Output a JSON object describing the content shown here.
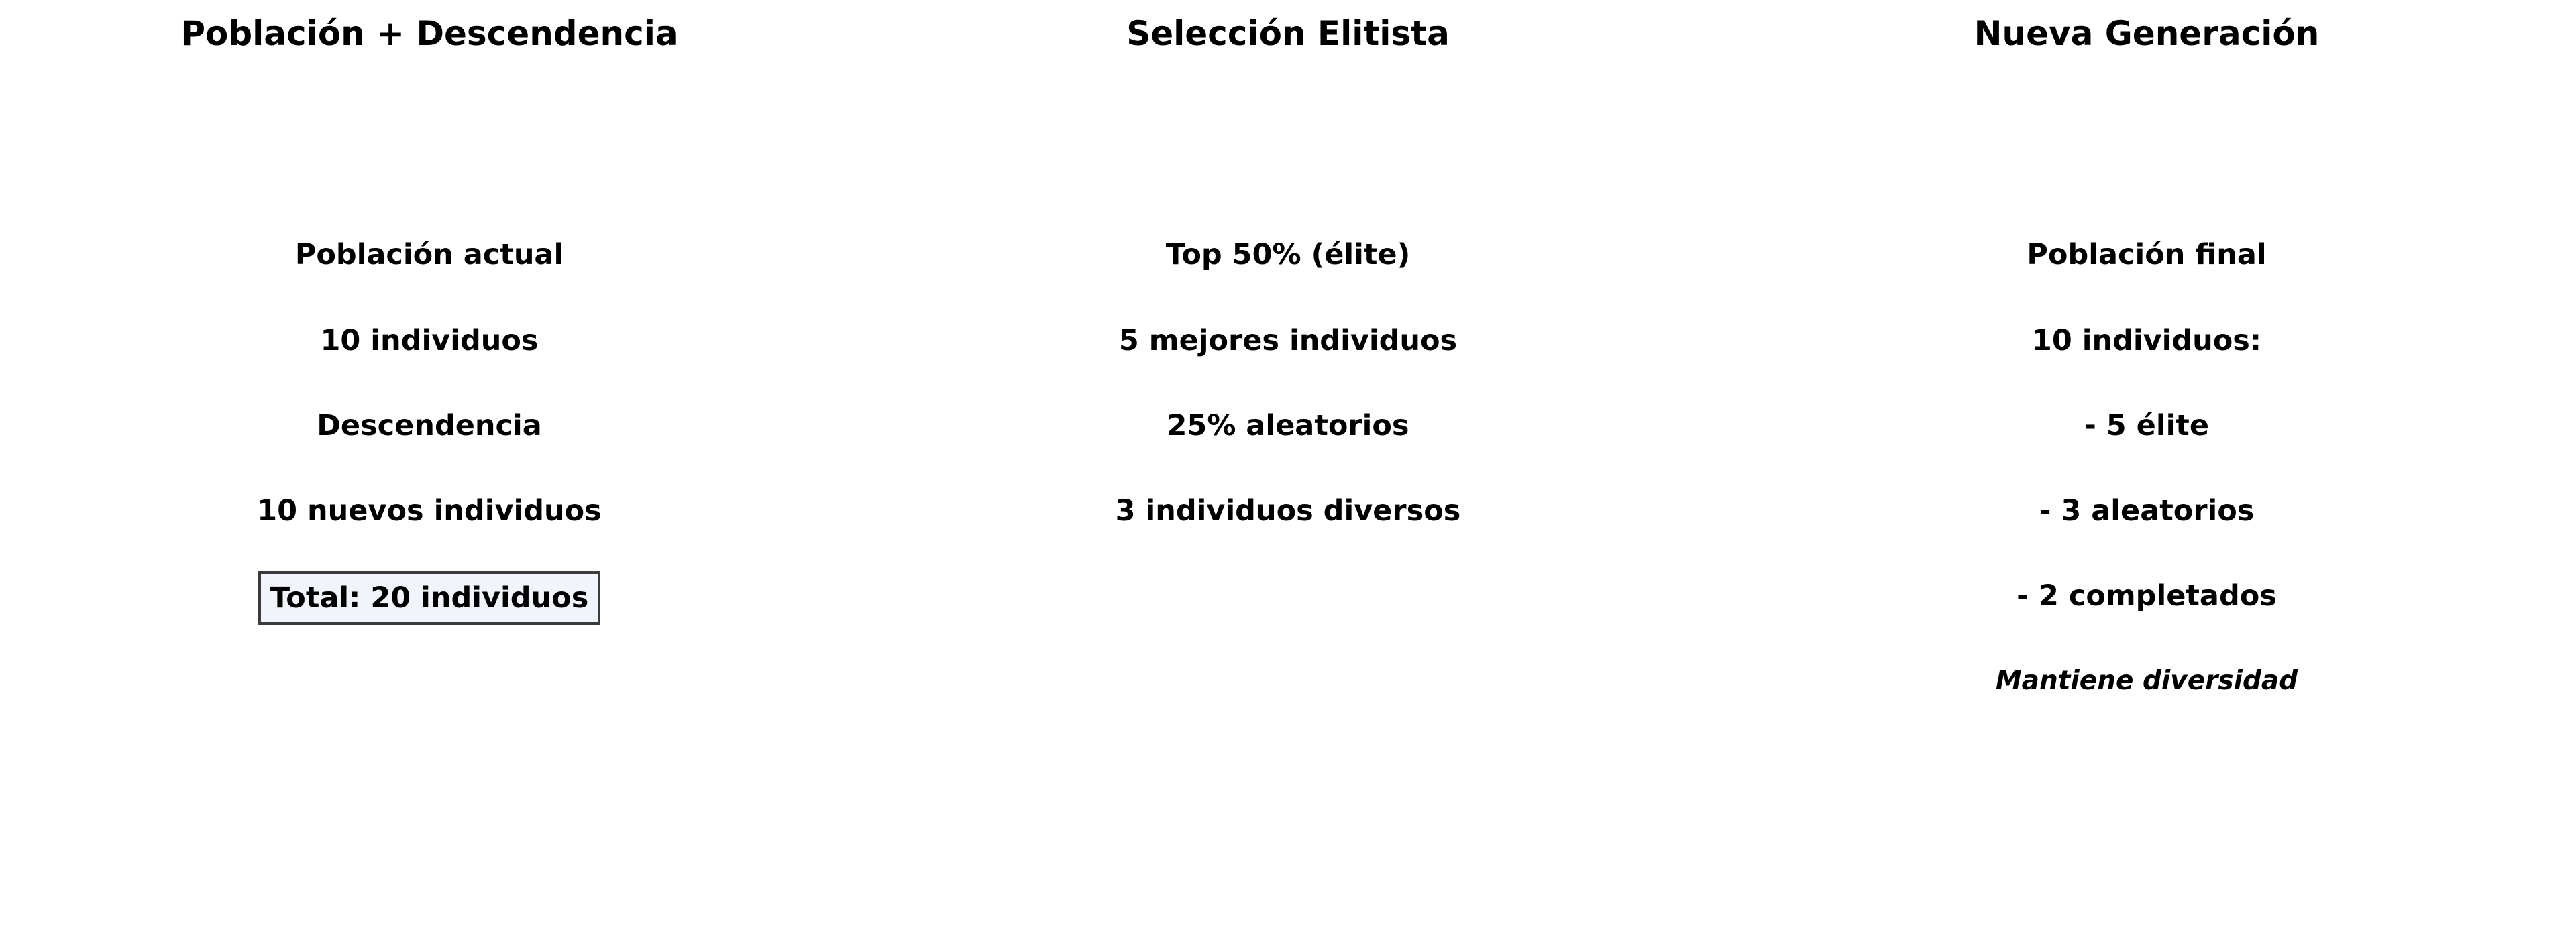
{
  "panels": [
    {
      "title": "Población + Descendencia",
      "items": [
        "Población actual",
        "10 individuos",
        "Descendencia",
        "10 nuevos individuos"
      ],
      "boxed": "Total: 20 individuos"
    },
    {
      "title": "Selección Elitista",
      "items": [
        "Top 50% (élite)",
        "5 mejores individuos",
        "25% aleatorios",
        "3 individuos diversos"
      ]
    },
    {
      "title": "Nueva Generación",
      "items": [
        "Población final",
        "10 individuos:",
        "- 5 élite",
        "- 3 aleatorios",
        "- 2 completados"
      ],
      "note": "Mantiene diversidad"
    }
  ],
  "colors": {
    "box_fill": "#f1f5fb",
    "box_border": "#3c3c3c",
    "text": "#000000"
  }
}
